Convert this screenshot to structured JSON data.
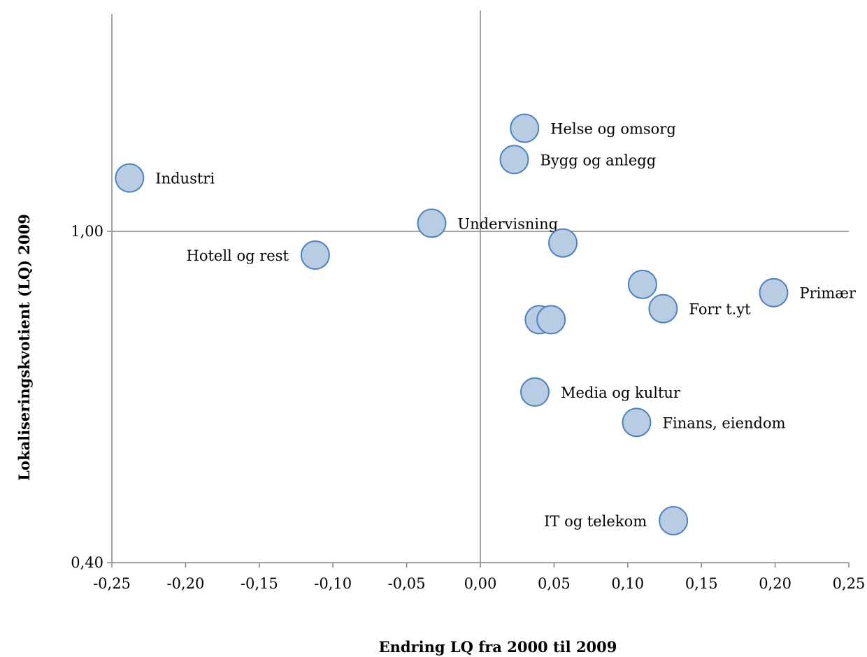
{
  "chart_data": {
    "type": "scatter",
    "xlabel": "Endring LQ fra 2000 til 2009",
    "ylabel": "Lokaliseringskvotient (LQ) 2009",
    "xlim": [
      -0.25,
      0.25
    ],
    "ylim": [
      0.4,
      1.6
    ],
    "y_axis_crosses_at_x": 0.0,
    "x_axis_crosses_at_y": 1.0,
    "x_ticks": [
      "-0,25",
      "-0,20",
      "-0,15",
      "-0,10",
      "-0,05",
      "0,00",
      "0,05",
      "0,10",
      "0,15",
      "0,20",
      "0,25"
    ],
    "y_ticks": [
      {
        "value": 1.0,
        "label": "1,00"
      },
      {
        "value": 0.4,
        "label": "0,40"
      }
    ],
    "grid": false,
    "legend": "none",
    "marker_color": "#b8cce4",
    "marker_edge_color": "#4f81bd",
    "points": [
      {
        "x": 0.03,
        "y": 1.28,
        "label": "Helse og omsorg",
        "label_side": "right"
      },
      {
        "x": 0.023,
        "y": 1.195,
        "label": "Bygg og anlegg",
        "label_side": "right"
      },
      {
        "x": -0.238,
        "y": 1.145,
        "label": "Industri",
        "label_side": "right"
      },
      {
        "x": -0.033,
        "y": 1.022,
        "label": "Undervisning",
        "label_side": "right"
      },
      {
        "x": -0.112,
        "y": 0.957,
        "label": "Hotell og rest",
        "label_side": "left"
      },
      {
        "x": 0.056,
        "y": 0.979,
        "label": ""
      },
      {
        "x": 0.11,
        "y": 0.904,
        "label": ""
      },
      {
        "x": 0.199,
        "y": 0.889,
        "label": "Primær",
        "label_side": "right"
      },
      {
        "x": 0.124,
        "y": 0.86,
        "label": "Forr t.yt",
        "label_side": "right"
      },
      {
        "x": 0.04,
        "y": 0.84,
        "label": ""
      },
      {
        "x": 0.048,
        "y": 0.84,
        "label": ""
      },
      {
        "x": 0.037,
        "y": 0.709,
        "label": "Media og kultur",
        "label_side": "right"
      },
      {
        "x": 0.106,
        "y": 0.654,
        "label": "Finans, eiendom",
        "label_side": "right"
      },
      {
        "x": 0.131,
        "y": 0.476,
        "label": "IT og telekom",
        "label_side": "left"
      }
    ]
  }
}
